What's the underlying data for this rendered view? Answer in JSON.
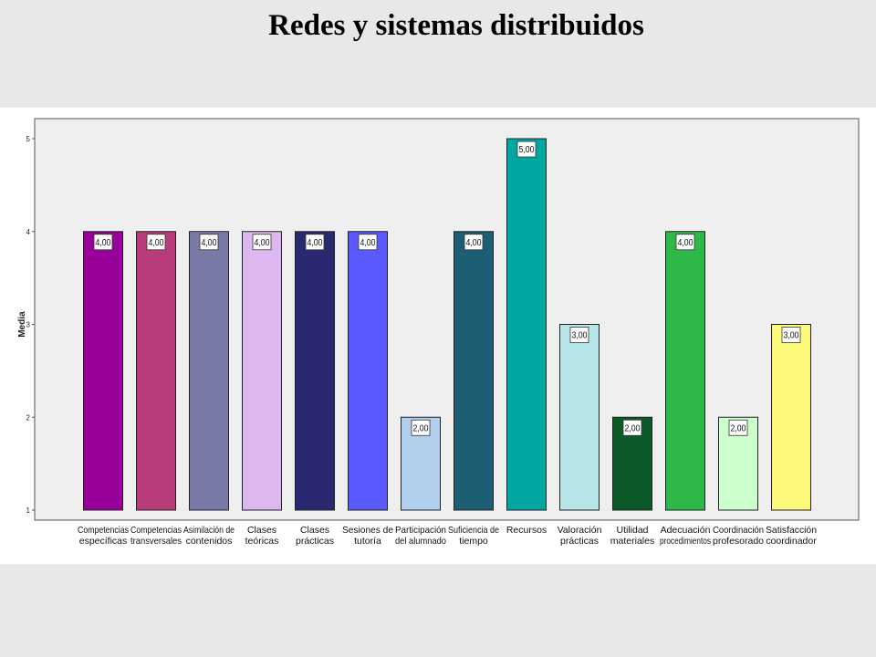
{
  "title": "Redes y sistemas distribuidos",
  "chart_data": {
    "type": "bar",
    "title": "",
    "xlabel": "",
    "ylabel": "Media",
    "ylim": [
      1,
      5
    ],
    "yticks": [
      "1",
      "2",
      "3",
      "4",
      "5"
    ],
    "grid": false,
    "legend": "none",
    "categories": [
      [
        "Competencias",
        "específicas"
      ],
      [
        "Competencias",
        "transversales"
      ],
      [
        "Asimilación de",
        "contenidos"
      ],
      [
        "Clases",
        "teóricas"
      ],
      [
        "Clases",
        "prácticas"
      ],
      [
        "Sesiones de",
        "tutoría"
      ],
      [
        "Participación",
        "del alumnado"
      ],
      [
        "Suficiencia de",
        "tiempo"
      ],
      [
        "Recursos"
      ],
      [
        "Valoración",
        "prácticas"
      ],
      [
        "Utilidad",
        "materiales"
      ],
      [
        "Adecuación",
        "procedimientos"
      ],
      [
        "Coordinación",
        "profesorado"
      ],
      [
        "Satisfacción",
        "coordinador"
      ]
    ],
    "values": [
      4,
      4,
      4,
      4,
      4,
      4,
      2,
      4,
      5,
      3,
      2,
      4,
      2,
      3
    ],
    "value_labels": [
      "4,00",
      "4,00",
      "4,00",
      "4,00",
      "4,00",
      "4,00",
      "2,00",
      "4,00",
      "5,00",
      "3,00",
      "2,00",
      "4,00",
      "2,00",
      "3,00"
    ],
    "colors": [
      "#990099",
      "#b83c7a",
      "#7a7aa8",
      "#ddb8f0",
      "#2a2870",
      "#5a5aff",
      "#b0d0ee",
      "#1c5e74",
      "#00a6a0",
      "#b6e6e8",
      "#0c5a2a",
      "#2fb84a",
      "#ccffcc",
      "#fcf87a"
    ],
    "plot_background": "#efefef"
  }
}
